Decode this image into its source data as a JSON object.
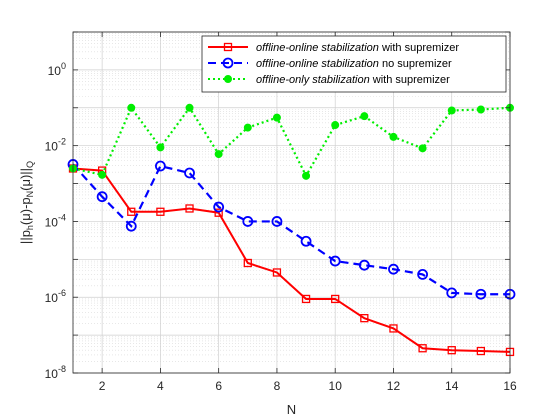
{
  "chart_data": {
    "type": "line",
    "xlabel": "N",
    "ylabel_parts": [
      "||p",
      "h",
      "(μ)-p",
      "N",
      "(μ)||",
      "Q"
    ],
    "xlim": [
      1,
      16
    ],
    "ylim": [
      1e-08,
      10
    ],
    "yscale": "log",
    "grid": true,
    "legend_placement": "top-right",
    "x_ticks": [
      2,
      4,
      6,
      8,
      10,
      12,
      14,
      16
    ],
    "y_ticks": [
      {
        "value": 1e-08,
        "base": "10",
        "exp": "-8"
      },
      {
        "value": 1e-06,
        "base": "10",
        "exp": "-6"
      },
      {
        "value": 0.0001,
        "base": "10",
        "exp": "-4"
      },
      {
        "value": 0.01,
        "base": "10",
        "exp": "-2"
      },
      {
        "value": 1,
        "base": "10",
        "exp": "0"
      }
    ],
    "x": [
      1,
      2,
      3,
      4,
      5,
      6,
      7,
      8,
      9,
      10,
      11,
      12,
      13,
      14,
      15,
      16
    ],
    "series": [
      {
        "legend_italic": "offline-online stabilization",
        "legend_rest": " with supremizer",
        "color": "#ff0000",
        "line_style": "solid",
        "marker": "square-open",
        "values": [
          0.0025,
          0.0022,
          0.00018,
          0.00018,
          0.00022,
          0.00017,
          8e-06,
          4.5e-06,
          9e-07,
          9e-07,
          2.8e-07,
          1.5e-07,
          4.5e-08,
          4e-08,
          3.8e-08,
          3.6e-08
        ]
      },
      {
        "legend_italic": "offline-online stabilization",
        "legend_rest": " no supremizer",
        "color": "#0000ff",
        "line_style": "dashed",
        "marker": "circle-open",
        "values": [
          0.0032,
          0.00045,
          7.5e-05,
          0.0029,
          0.0019,
          0.00024,
          0.0001,
          0.0001,
          3e-05,
          9e-06,
          7e-06,
          5.5e-06,
          4e-06,
          1.3e-06,
          1.2e-06,
          1.2e-06
        ]
      },
      {
        "legend_italic": "offline-only stabilization",
        "legend_rest": " with supremizer",
        "color": "#00ee00",
        "line_style": "dotted",
        "marker": "circle-filled",
        "values": [
          0.0025,
          0.0017,
          0.1,
          0.009,
          0.1,
          0.006,
          0.03,
          0.055,
          0.0016,
          0.035,
          0.06,
          0.017,
          0.0085,
          0.085,
          0.09,
          0.1
        ]
      }
    ]
  }
}
